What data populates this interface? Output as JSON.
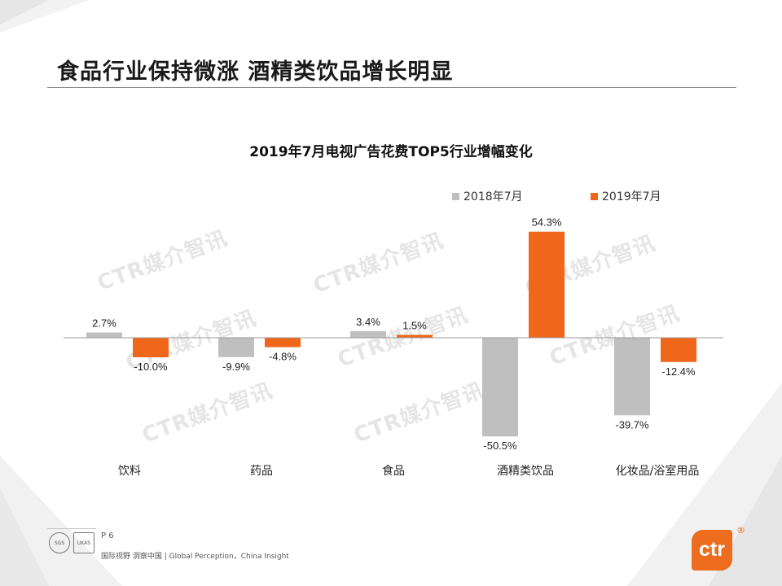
{
  "slide": {
    "title": "食品行业保持微涨 酒精类饮品增长明显"
  },
  "colors": {
    "series_2018": "#bfbfbf",
    "series_2019": "#f0661a",
    "accent": "#ee6c1e"
  },
  "watermarks": [
    "CTR媒介智讯",
    "CTR媒介智讯",
    "CTR媒介智讯",
    "CTR媒介智讯",
    "CTR媒介智讯",
    "CTR媒介智讯",
    "CTR媒介智讯",
    "CTR媒介智讯"
  ],
  "chart_data": {
    "type": "bar",
    "title": "2019年7月电视广告花费TOP5行业增幅变化",
    "categories": [
      "饮料",
      "药品",
      "食品",
      "酒精类饮品",
      "化妆品/浴室用品"
    ],
    "series": [
      {
        "name": "2018年7月",
        "values": [
          2.7,
          -9.9,
          3.4,
          -50.5,
          -39.7
        ],
        "labels": [
          "2.7%",
          "-9.9%",
          "3.4%",
          "-50.5%",
          "-39.7%"
        ]
      },
      {
        "name": "2019年7月",
        "values": [
          -10.0,
          -4.8,
          1.5,
          54.3,
          -12.4
        ],
        "labels": [
          "-10.0%",
          "-4.8%",
          "1.5%",
          "54.3%",
          "-12.4%"
        ]
      }
    ],
    "unit": "%",
    "ylim": [
      -60,
      60
    ],
    "legend": "top-right",
    "grid": false
  },
  "footer": {
    "page": "P 6",
    "tagline": "国际视野 洞察中国 | Global Perception，China Insight",
    "badge_1": "SGS",
    "badge_2": "UKAS",
    "logo": "ctr",
    "logo_mark": "®"
  }
}
